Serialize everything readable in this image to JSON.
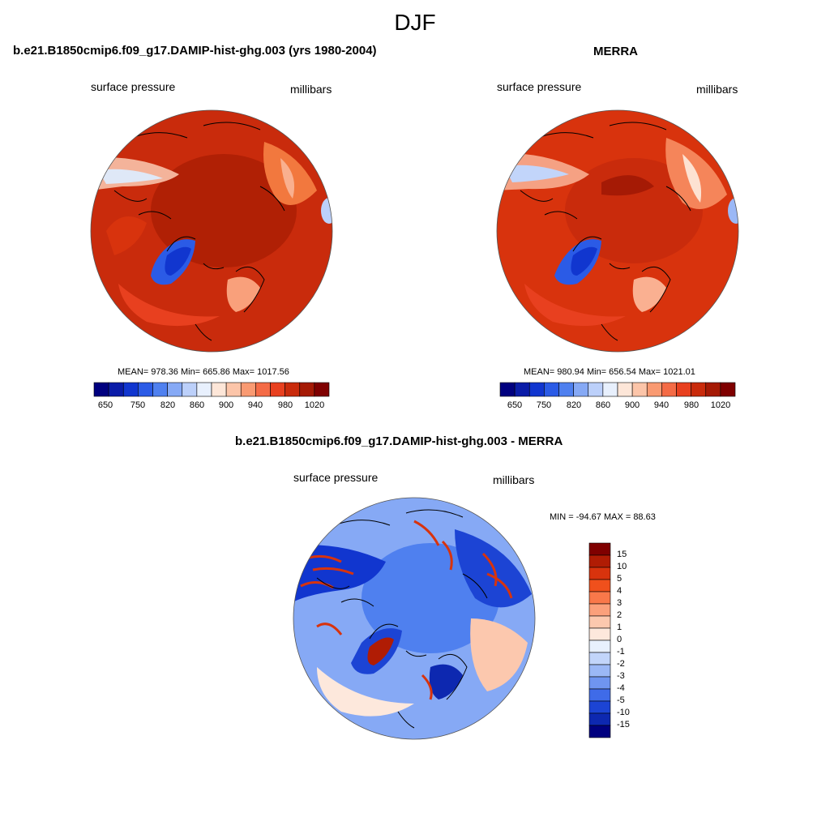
{
  "page": {
    "title": "DJF"
  },
  "panels": {
    "model": {
      "title": "b.e21.B1850cmip6.f09_g17.DAMIP-hist-ghg.003 (yrs 1980-2004)",
      "variable": "surface pressure",
      "units": "millibars",
      "stats": "MEAN= 978.36  Min= 665.86  Max= 1017.56"
    },
    "obs": {
      "title": "MERRA",
      "variable": "surface pressure",
      "units": "millibars",
      "stats": "MEAN= 980.94  Min= 656.54  Max= 1021.01"
    },
    "diff": {
      "title": "b.e21.B1850cmip6.f09_g17.DAMIP-hist-ghg.003 - MERRA",
      "variable": "surface pressure",
      "units": "millibars",
      "stats": "MIN = -94.67 MAX =  88.63"
    }
  },
  "colorbar_abs": {
    "labels": [
      "650",
      "750",
      "820",
      "860",
      "900",
      "940",
      "980",
      "1020"
    ],
    "colors": [
      "#00007f",
      "#0a1ca8",
      "#1136cf",
      "#2b5be6",
      "#4f80ef",
      "#86a9f5",
      "#bcd0fa",
      "#e8f0fd",
      "#fde6d8",
      "#fcc5a9",
      "#f99a72",
      "#f46b46",
      "#e8401f",
      "#c92b0c",
      "#a51a05",
      "#7f0000"
    ]
  },
  "colorbar_diff": {
    "labels": [
      "15",
      "10",
      "5",
      "4",
      "3",
      "2",
      "1",
      "0",
      "-1",
      "-2",
      "-3",
      "-4",
      "-5",
      "-10",
      "-15"
    ],
    "colors": [
      "#7f0000",
      "#b01c04",
      "#d8330d",
      "#f0501c",
      "#f9784a",
      "#fba07b",
      "#fcc8ae",
      "#fde8dc",
      "#e8f0fd",
      "#c2d5fa",
      "#9bb8f6",
      "#6f95f0",
      "#3f6be8",
      "#1c44d4",
      "#0d28b0",
      "#00007f"
    ]
  },
  "chart_data": [
    {
      "type": "heatmap",
      "title": "b.e21.B1850cmip6.f09_g17.DAMIP-hist-ghg.003 (yrs 1980-2004)",
      "variable": "surface pressure",
      "units": "millibars",
      "mean": 978.36,
      "min": 665.86,
      "max": 1017.56,
      "contour_levels": [
        650,
        750,
        820,
        860,
        900,
        940,
        980,
        1020
      ]
    },
    {
      "type": "heatmap",
      "title": "MERRA",
      "variable": "surface pressure",
      "units": "millibars",
      "mean": 980.94,
      "min": 656.54,
      "max": 1021.01,
      "contour_levels": [
        650,
        750,
        820,
        860,
        900,
        940,
        980,
        1020
      ]
    },
    {
      "type": "heatmap",
      "title": "b.e21.B1850cmip6.f09_g17.DAMIP-hist-ghg.003 - MERRA",
      "variable": "surface pressure",
      "units": "millibars",
      "min": -94.67,
      "max": 88.63,
      "contour_levels": [
        15,
        10,
        5,
        4,
        3,
        2,
        1,
        0,
        -1,
        -2,
        -3,
        -4,
        -5,
        -10,
        -15
      ]
    }
  ]
}
